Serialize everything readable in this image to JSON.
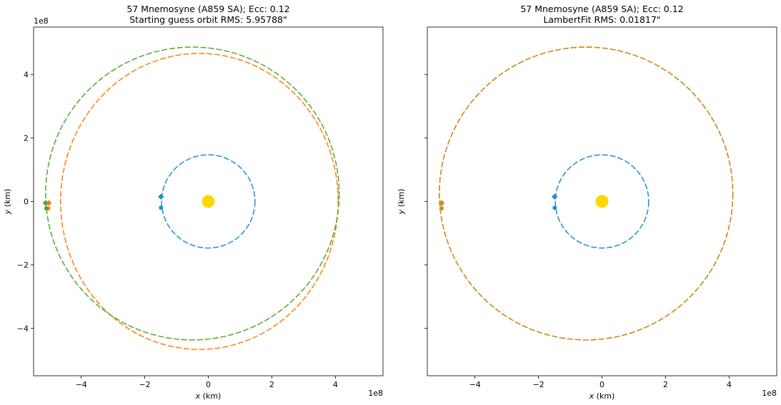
{
  "chart_data": [
    {
      "type": "line",
      "title_line1": "57 Mnemosyne (A859 SA); Ecc: 0.12",
      "title_line2": "Starting guess orbit RMS: 5.95788\"",
      "xlabel_var": "x",
      "xlabel_unit": " (km)",
      "ylabel_var": "y",
      "ylabel_unit": " (km)",
      "x_offset_text": "1e8",
      "y_offset_text": "1e8",
      "xlim": [
        -5.5,
        5.5
      ],
      "ylim": [
        -5.5,
        5.5
      ],
      "xticks": [
        -4,
        -2,
        0,
        2,
        4
      ],
      "yticks": [
        -4,
        -2,
        0,
        2,
        4
      ],
      "xtick_labels": [
        "−4",
        "−2",
        "0",
        "2",
        "4"
      ],
      "ytick_labels": [
        "−4",
        "−2",
        "0",
        "2",
        "4"
      ],
      "show_ytick_labels": true,
      "sun": {
        "x": 0,
        "y": 0,
        "color": "#ffd700"
      },
      "orbits": [
        {
          "key": "earth",
          "color": "#1f8fd0",
          "center": [
            0,
            0
          ],
          "rx": 1.47,
          "ry": 1.47,
          "markers": [
            {
              "shape": "diamond",
              "x": -1.49,
              "y": 0.15
            },
            {
              "shape": "circle",
              "x": -1.49,
              "y": -0.2
            }
          ]
        },
        {
          "key": "asteroid-guess",
          "color": "#ff7f0e",
          "center": [
            -0.28,
            0.0
          ],
          "rx": 4.37,
          "ry": 4.67,
          "markers": [
            {
              "shape": "diamond",
              "x": -5.02,
              "y": -0.05
            },
            {
              "shape": "circle",
              "x": -5.04,
              "y": -0.22
            }
          ]
        },
        {
          "key": "asteroid-observed",
          "color": "#55a630",
          "center": [
            -0.5,
            0.25
          ],
          "rx": 4.62,
          "ry": 4.62,
          "markers": [
            {
              "shape": "diamond",
              "x": -5.12,
              "y": -0.05
            },
            {
              "shape": "circle",
              "x": -5.1,
              "y": -0.22
            }
          ]
        }
      ]
    },
    {
      "type": "line",
      "title_line1": "57 Mnemosyne (A859 SA); Ecc: 0.12",
      "title_line2": "LambertFit RMS: 0.01817\"",
      "xlabel_var": "x",
      "xlabel_unit": " (km)",
      "ylabel_var": "y",
      "ylabel_unit": " (km)",
      "x_offset_text": "1e8",
      "y_offset_text": "",
      "xlim": [
        -5.5,
        5.5
      ],
      "ylim": [
        -5.5,
        5.5
      ],
      "xticks": [
        -4,
        -2,
        0,
        2,
        4
      ],
      "yticks": [
        -4,
        -2,
        0,
        2,
        4
      ],
      "xtick_labels": [
        "−4",
        "−2",
        "0",
        "2",
        "4"
      ],
      "ytick_labels": [
        "",
        "",
        "",
        "",
        ""
      ],
      "show_ytick_labels": false,
      "sun": {
        "x": 0,
        "y": 0,
        "color": "#ffd700"
      },
      "orbits": [
        {
          "key": "earth",
          "color": "#1f8fd0",
          "center": [
            0,
            0
          ],
          "rx": 1.47,
          "ry": 1.47,
          "markers": [
            {
              "shape": "diamond",
              "x": -1.49,
              "y": 0.15
            },
            {
              "shape": "circle",
              "x": -1.49,
              "y": -0.2
            }
          ]
        },
        {
          "key": "asteroid-observed",
          "color": "#55a630",
          "center": [
            -0.5,
            0.25
          ],
          "rx": 4.62,
          "ry": 4.62,
          "markers": [
            {
              "shape": "diamond",
              "x": -5.05,
              "y": -0.05
            },
            {
              "shape": "circle",
              "x": -5.05,
              "y": -0.22
            }
          ]
        },
        {
          "key": "asteroid-fit",
          "color": "#d98a1a",
          "center": [
            -0.5,
            0.25
          ],
          "rx": 4.62,
          "ry": 4.62,
          "markers": [
            {
              "shape": "diamond",
              "x": -5.05,
              "y": -0.05
            },
            {
              "shape": "circle",
              "x": -5.05,
              "y": -0.22
            }
          ]
        }
      ]
    }
  ]
}
